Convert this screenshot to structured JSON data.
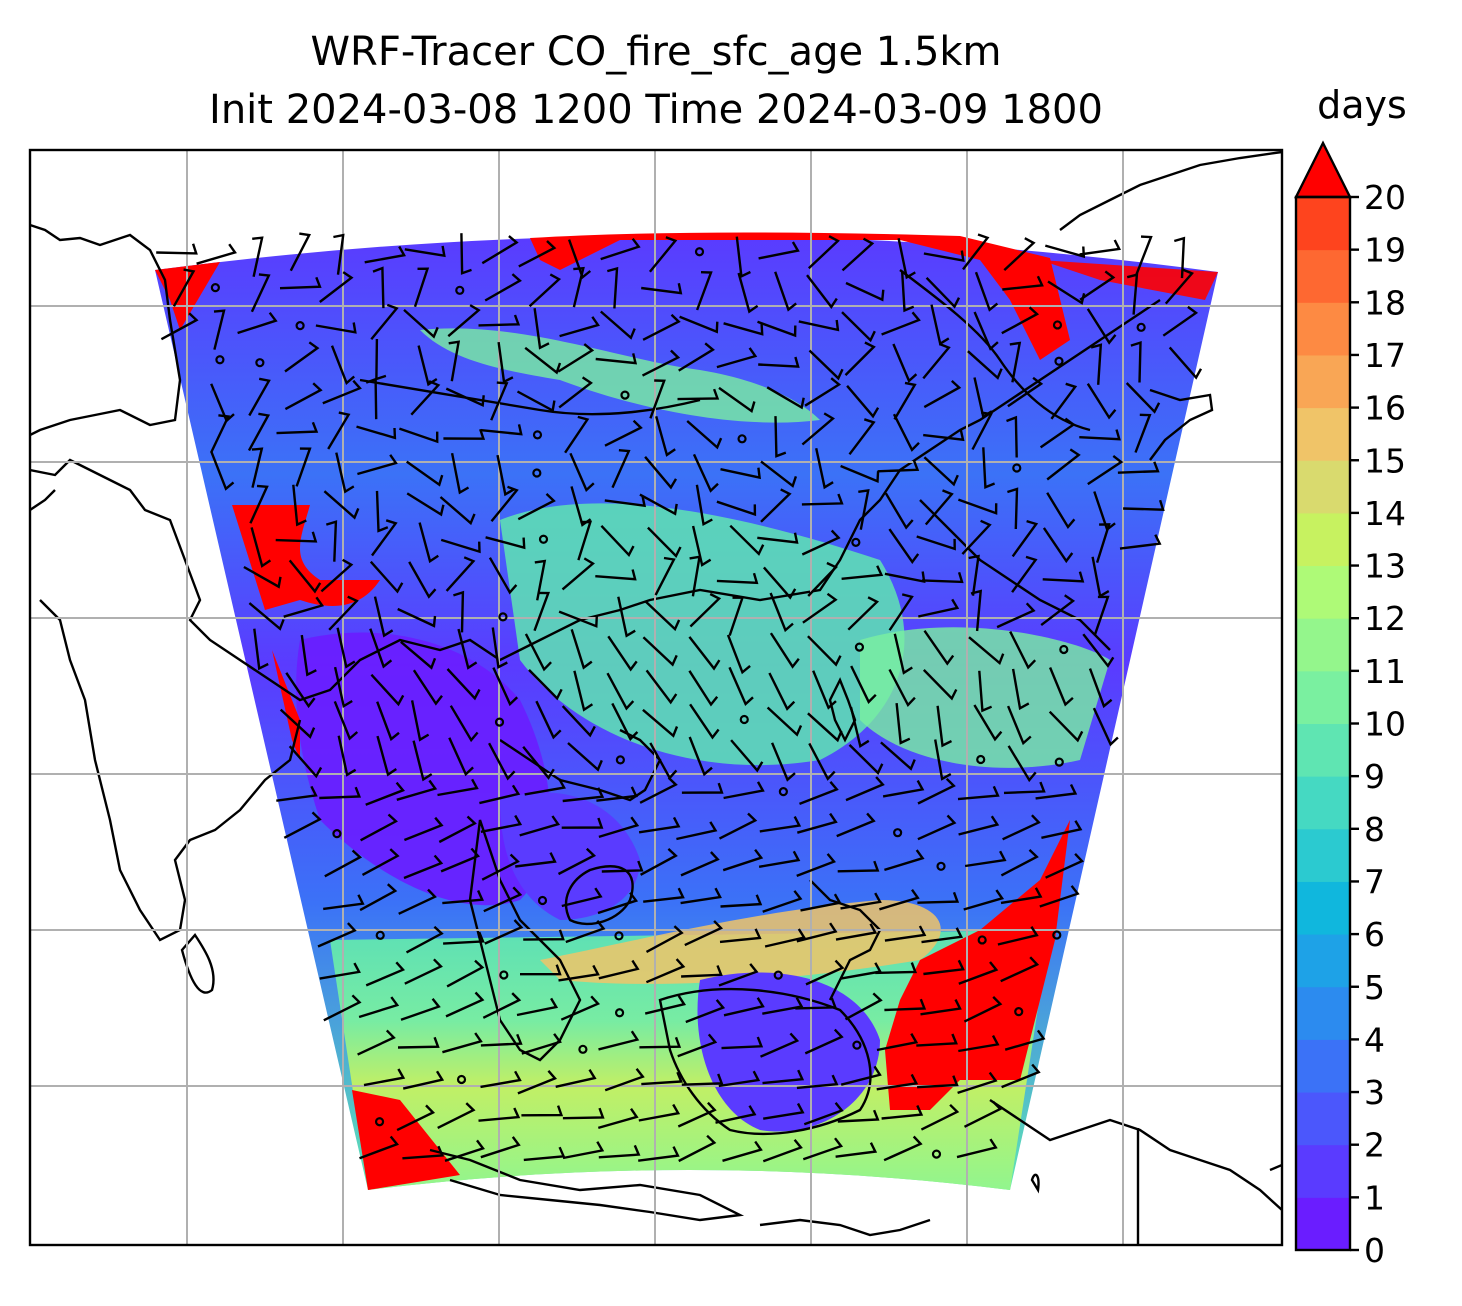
{
  "title": {
    "line1": "WRF-Tracer CO_fire_sfc_age 1.5km",
    "line2": "Init 2024-03-08 1200 Time 2024-03-09 1800"
  },
  "colorbar": {
    "unit": "days",
    "ticks": [
      "0",
      "1",
      "2",
      "3",
      "4",
      "5",
      "6",
      "7",
      "8",
      "9",
      "10",
      "11",
      "12",
      "13",
      "14",
      "15",
      "16",
      "17",
      "18",
      "19",
      "20"
    ],
    "extend": "max",
    "colors": [
      "#6a1dff",
      "#5a3bff",
      "#4b57fc",
      "#3b72f7",
      "#2c8bef",
      "#1ea2e7",
      "#10b7dd",
      "#2bcad0",
      "#45d9c2",
      "#5fe5b2",
      "#7af0a0",
      "#94f68c",
      "#aefa77",
      "#c7f260",
      "#d9da6e",
      "#f0c468",
      "#f9a655",
      "#fd8a43",
      "#fe6831",
      "#fe441e",
      "#ff1a0c"
    ],
    "extend_color": "#ff0000"
  },
  "map": {
    "projection_grid": "gray lat/lon gridlines",
    "coastlines": true,
    "wind_barbs": true
  }
}
